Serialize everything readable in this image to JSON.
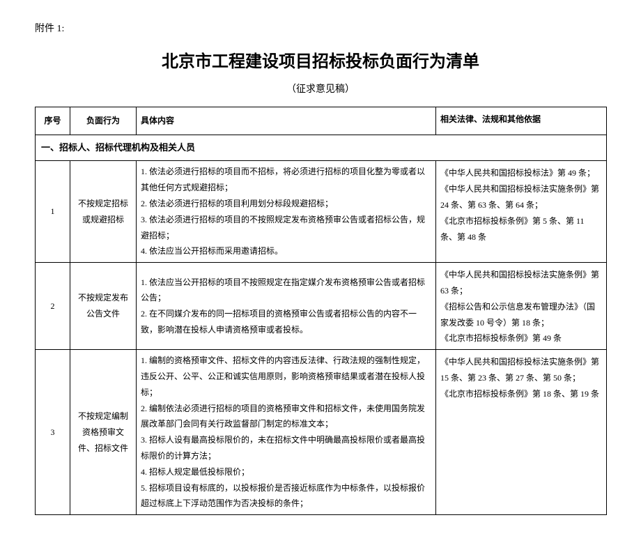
{
  "attachment_label": "附件 1:",
  "title": "北京市工程建设项目招标投标负面行为清单",
  "subtitle": "（征求意见稿）",
  "headers": {
    "num": "序号",
    "behavior": "负面行为",
    "content": "具体内容",
    "legal": "相关法律、法规和其他依据"
  },
  "section_header": "一、招标人、招标代理机构及相关人员",
  "rows": [
    {
      "num": "1",
      "behavior": "不按规定招标或规避招标",
      "content": "1. 依法必须进行招标的项目而不招标，将必须进行招标的项目化整为零或者以其他任何方式规避招标；\n2. 依法必须进行招标的项目利用划分标段规避招标；\n3. 依法必须进行招标的项目的不按照规定发布资格预审公告或者招标公告，规避招标；\n4. 依法应当公开招标而采用邀请招标。",
      "legal": "《中华人民共和国招标投标法》第 49 条；\n《中华人民共和国招标投标法实施条例》第 24 条、第 63 条、第 64 条；\n《北京市招标投标条例》第 5 条、第 11 条、第 48 条"
    },
    {
      "num": "2",
      "behavior": "不按规定发布公告文件",
      "content": "1. 依法应当公开招标的项目不按照规定在指定媒介发布资格预审公告或者招标公告；\n2. 在不同媒介发布的同一招标项目的资格预审公告或者招标公告的内容不一致，影响潜在投标人申请资格预审或者投标。",
      "legal": "《中华人民共和国招标投标法实施条例》第 63 条；\n《招标公告和公示信息发布管理办法》（国家发改委 10 号令）第 18 条；\n《北京市招标投标条例》第 49 条"
    },
    {
      "num": "3",
      "behavior": "不按规定编制资格预审文件、招标文件",
      "content": "1. 编制的资格预审文件、招标文件的内容违反法律、行政法规的强制性规定，违反公开、公平、公正和诚实信用原则，影响资格预审结果或者潜在投标人投标；\n2. 编制依法必须进行招标的项目的资格预审文件和招标文件，未使用国务院发展改革部门会同有关行政监督部门制定的标准文本；\n3. 招标人设有最高投标限价的，未在招标文件中明确最高投标限价或者最高投标限价的计算方法；\n4. 招标人规定最低投标限价；\n5. 招标项目设有标底的，以投标报价是否接近标底作为中标条件，以投标报价超过标底上下浮动范围作为否决投标的条件；",
      "legal": "《中华人民共和国招标投标法实施条例》第 15 条、第 23 条、第 27 条、第 50 条；\n《北京市招标投标条例》第 18 条、第 19 条"
    }
  ]
}
